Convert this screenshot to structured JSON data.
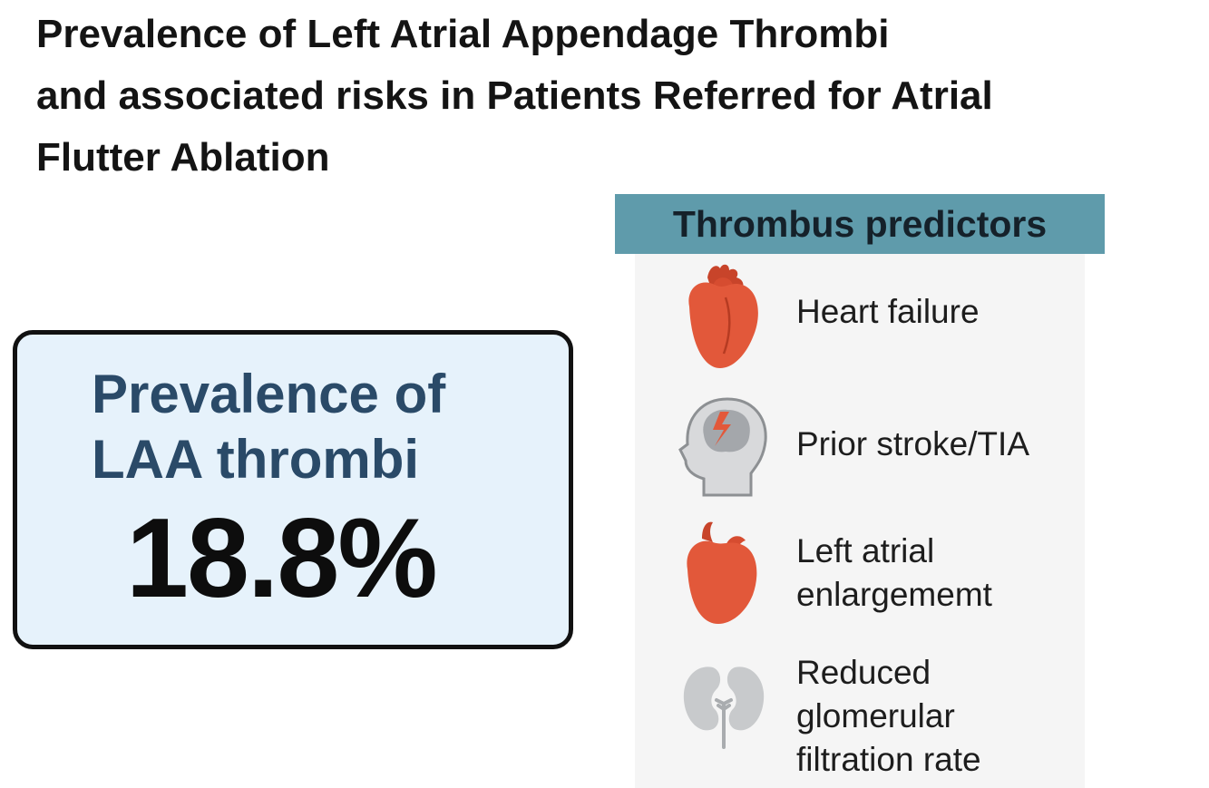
{
  "title": {
    "line1": "Prevalence of Left Atrial Appendage Thrombi",
    "line2": "and associated risks in Patients Referred for Atrial",
    "line3": "Flutter Ablation"
  },
  "prevalence": {
    "label_line1": "Prevalence of",
    "label_line2": "LAA thrombi",
    "value": "18.8%"
  },
  "predictors": {
    "header": "Thrombus predictors",
    "items": [
      {
        "icon": "heart-icon",
        "lines": [
          "Heart failure"
        ]
      },
      {
        "icon": "head-brain-icon",
        "lines": [
          "Prior stroke/TIA"
        ]
      },
      {
        "icon": "enlarged-heart-icon",
        "lines": [
          "Left atrial",
          "enlargememt"
        ]
      },
      {
        "icon": "kidney-icon",
        "lines": [
          "Reduced",
          "glomerular",
          "filtration rate"
        ]
      }
    ]
  },
  "colors": {
    "header_bg": "#5f9bab",
    "box_bg": "#e6f2fb",
    "label_blue": "#2a4a68",
    "organ_red": "#e2583a",
    "icon_gray": "#c8cacc"
  }
}
